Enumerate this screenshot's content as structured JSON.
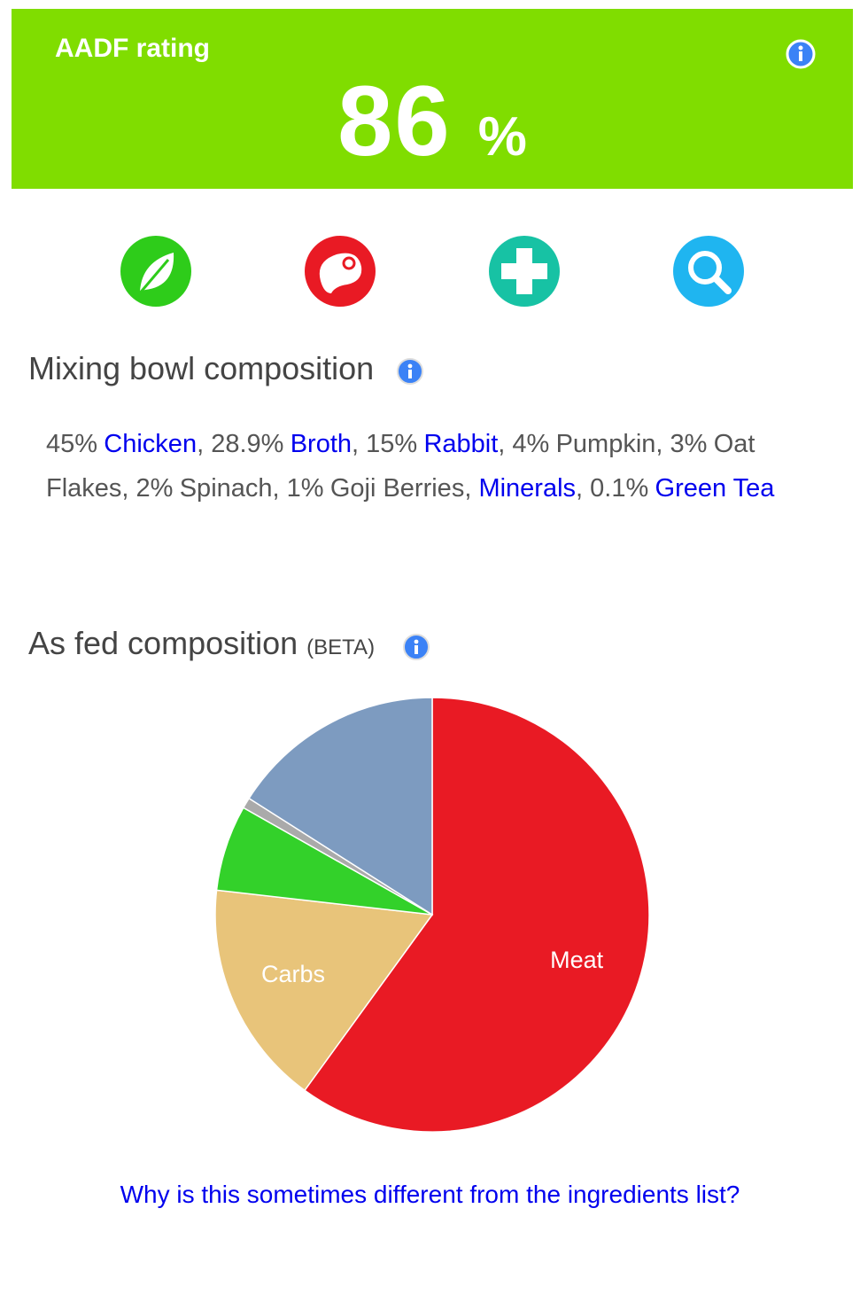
{
  "rating": {
    "label": "AADF rating",
    "value": 86,
    "unit": "%"
  },
  "mixing": {
    "title": "Mixing bowl composition",
    "separator": ", ",
    "ingredients": [
      {
        "percent": "45%",
        "name": "Chicken",
        "link": true
      },
      {
        "percent": "28.9%",
        "name": "Broth",
        "link": true
      },
      {
        "percent": "15%",
        "name": "Rabbit",
        "link": true
      },
      {
        "percent": "4%",
        "name": "Pumpkin",
        "link": false
      },
      {
        "percent": "3%",
        "name": "Oat Flakes",
        "link": false
      },
      {
        "percent": "2%",
        "name": "Spinach",
        "link": false
      },
      {
        "percent": "1%",
        "name": "Goji Berries",
        "link": false
      },
      {
        "name": "Minerals",
        "link": true
      },
      {
        "percent": "0.1%",
        "name": "Green Tea",
        "link": true
      }
    ]
  },
  "as_fed": {
    "title": "As fed composition",
    "tag": "(BETA)"
  },
  "chart_data": {
    "type": "pie",
    "categories": [
      "Meat",
      "Carbs",
      null,
      null,
      null
    ],
    "values": [
      60,
      16.8,
      6.4,
      0.8,
      16
    ],
    "colors": [
      "#e91a24",
      "#e8c47a",
      "#33d12a",
      "#aaaaaa",
      "#7d9bc0"
    ]
  },
  "link": "Why is this sometimes different from the ingredients list?"
}
